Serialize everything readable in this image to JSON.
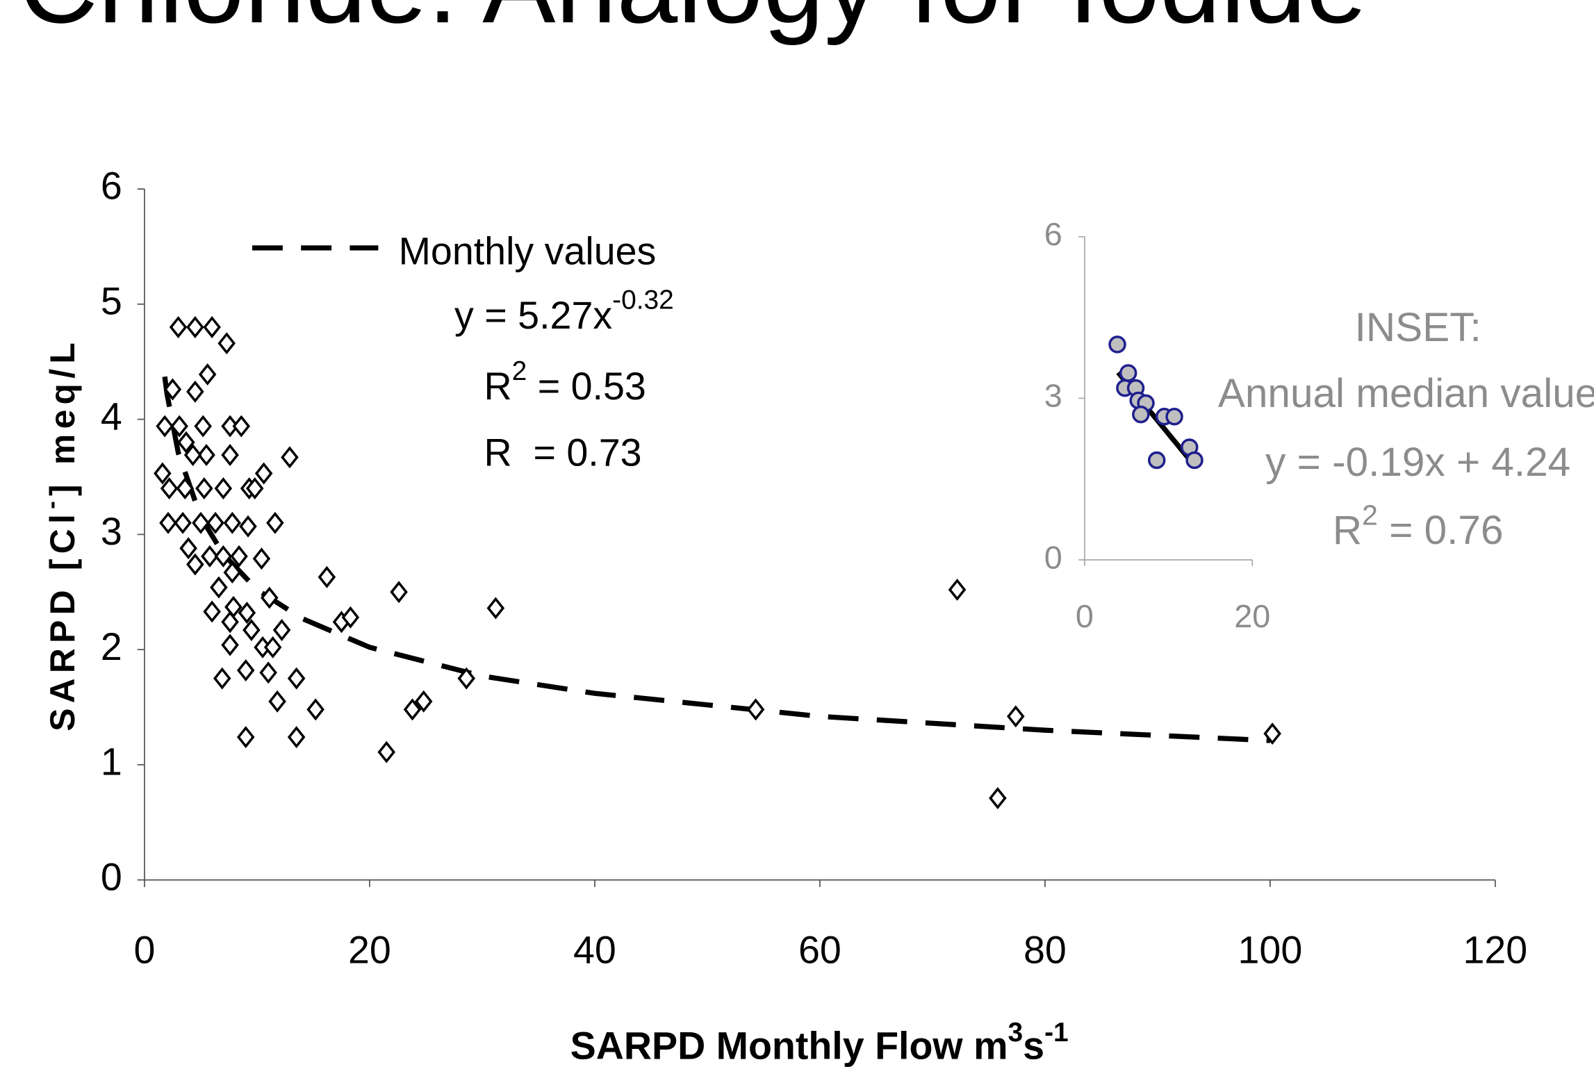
{
  "chart_data": [
    {
      "type": "scatter",
      "title": "Chloride: Analogy for Iodide",
      "x_label": [
        "SARPD Monthly Flow m",
        "3",
        "s",
        "-1"
      ],
      "y_label": [
        "SARPD [Cl",
        "-",
        "] meq/L"
      ],
      "annotations": [
        [
          "y = 5.27x",
          "-0.32"
        ],
        [
          "R",
          "2",
          " = 0.53"
        ],
        [
          "R  = 0.73"
        ]
      ],
      "xlim": [
        0,
        120
      ],
      "xticks": [
        0,
        20,
        40,
        60,
        80,
        100,
        120
      ],
      "ylim": [
        0,
        6
      ],
      "yticks": [
        0,
        1,
        2,
        3,
        4,
        5,
        6
      ],
      "legend": "upper left",
      "text_color": "#000000",
      "series": [
        {
          "marker": "diamond",
          "color": "#000000",
          "x": [
            3.0,
            4.5,
            6.0,
            7.3,
            5.6,
            4.5,
            2.5,
            1.8,
            3.1,
            5.2,
            7.6,
            8.6,
            3.7,
            5.5,
            7.6,
            12.9,
            4.3,
            1.6,
            10.6,
            2.2,
            3.6,
            5.3,
            7.0,
            9.3,
            9.8,
            2.1,
            3.4,
            5.0,
            6.3,
            7.8,
            9.2,
            11.6,
            3.9,
            4.5,
            5.8,
            7.0,
            8.4,
            10.4,
            6.6,
            7.8,
            11.1,
            16.2,
            22.6,
            31.2,
            6.0,
            7.9,
            9.1,
            7.6,
            17.5,
            18.3,
            12.2,
            9.5,
            10.5,
            7.6,
            11.4,
            6.9,
            9.0,
            11.0,
            13.5,
            11.8,
            15.2,
            23.8,
            24.8,
            28.6,
            54.3,
            9.0,
            13.5,
            21.5,
            72.2,
            77.4,
            75.8,
            100.2
          ],
          "values": [
            4.8,
            4.8,
            4.8,
            4.66,
            4.39,
            4.24,
            4.26,
            3.94,
            3.94,
            3.94,
            3.94,
            3.94,
            3.8,
            3.69,
            3.69,
            3.67,
            3.69,
            3.53,
            3.53,
            3.4,
            3.4,
            3.4,
            3.4,
            3.4,
            3.4,
            3.1,
            3.1,
            3.1,
            3.1,
            3.1,
            3.07,
            3.1,
            2.88,
            2.74,
            2.81,
            2.81,
            2.81,
            2.79,
            2.54,
            2.67,
            2.45,
            2.63,
            2.5,
            2.36,
            2.33,
            2.37,
            2.32,
            2.24,
            2.24,
            2.28,
            2.17,
            2.17,
            2.02,
            2.04,
            2.02,
            1.75,
            1.82,
            1.8,
            1.75,
            1.55,
            1.48,
            1.48,
            1.55,
            1.75,
            1.48,
            1.24,
            1.24,
            1.11,
            2.52,
            1.42,
            0.71,
            1.27
          ]
        },
        {
          "name": "Monthly values",
          "line": "dashed",
          "color": "#000000",
          "x": [
            1.8,
            2,
            3,
            5,
            7,
            10,
            14,
            20,
            30,
            40,
            60,
            80,
            100
          ],
          "values": [
            4.37,
            4.22,
            3.71,
            3.15,
            2.83,
            2.52,
            2.27,
            2.02,
            1.77,
            1.62,
            1.42,
            1.3,
            1.21
          ]
        }
      ]
    },
    {
      "type": "scatter",
      "title": "INSET:",
      "subtitle": "Annual median values",
      "annotations": [
        [
          "y = -0.19x + 4.24"
        ],
        [
          "R",
          "2",
          " = 0.76"
        ]
      ],
      "xlim": [
        0,
        20
      ],
      "xticks": [
        0,
        20
      ],
      "ylim": [
        0,
        6
      ],
      "yticks": [
        0,
        3,
        6
      ],
      "text_color": "#8c8c8c",
      "series": [
        {
          "marker": "circle",
          "color": "#1f1f8f",
          "fill": "#bfbfbf",
          "x": [
            3.9,
            5.2,
            4.8,
            6.1,
            6.4,
            7.3,
            6.7,
            9.5,
            10.7,
            8.6,
            12.5,
            13.1
          ],
          "values": [
            4.0,
            3.47,
            3.19,
            3.19,
            2.96,
            2.91,
            2.7,
            2.66,
            2.66,
            1.85,
            2.09,
            1.85
          ]
        },
        {
          "line": "solid",
          "color": "#000000",
          "x": [
            4,
            13
          ],
          "values": [
            3.48,
            1.77
          ]
        }
      ]
    }
  ]
}
